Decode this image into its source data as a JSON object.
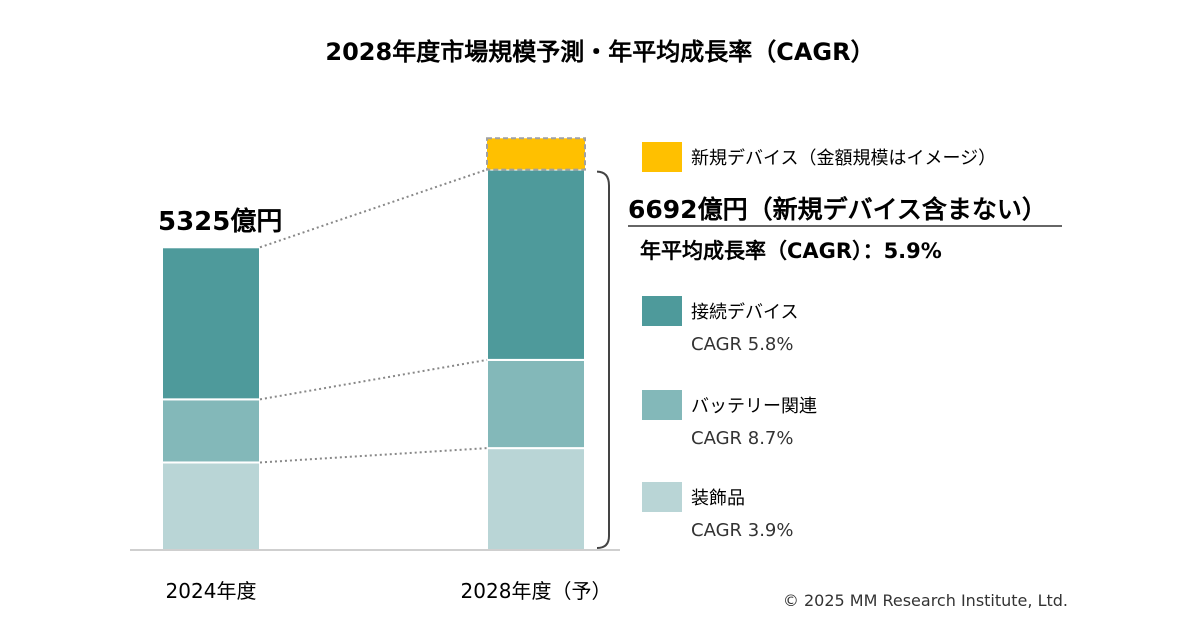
{
  "title": "2028年度市場規模予測・年平均成長率（CAGR）",
  "copyright": "© 2025 MM Research Institute, Ltd.",
  "colors": {
    "connected": "#4e9a9b",
    "battery": "#83b8b9",
    "accessories": "#b9d5d6",
    "new_devices": "#ffc000",
    "text": "#222222",
    "dotted_line": "#888888"
  },
  "chart_data": {
    "type": "bar",
    "stacked": true,
    "categories": [
      "2024年度",
      "2028年度（予）"
    ],
    "series": [
      {
        "name": "装飾品",
        "key": "accessories",
        "values": [
          1540,
          1792
        ]
      },
      {
        "name": "バッテリー関連",
        "key": "battery",
        "values": [
          1110,
          1552
        ]
      },
      {
        "name": "接続デバイス",
        "key": "connected",
        "values": [
          2675,
          3348
        ]
      },
      {
        "name": "新規デバイス（金額規模はイメージ）",
        "key": "new_devices",
        "values": [
          0,
          550
        ],
        "illustrative": true
      }
    ],
    "totals": [
      {
        "label": "5325億円"
      },
      {
        "label": "6692億円（新規デバイス含まない）"
      }
    ],
    "cagr_total": "年平均成長率（CAGR）：5.9%",
    "legend": [
      {
        "key": "new_devices",
        "label": "新規デバイス（金額規模はイメージ）",
        "sub": ""
      },
      {
        "key": "connected",
        "label": "接続デバイス",
        "sub": "CAGR 5.8%"
      },
      {
        "key": "battery",
        "label": "バッテリー関連",
        "sub": "CAGR 8.7%"
      },
      {
        "key": "accessories",
        "label": "装飾品",
        "sub": "CAGR 3.9%"
      }
    ],
    "ylim": [
      0,
      7300
    ],
    "grid": false,
    "legend_position": "right"
  }
}
